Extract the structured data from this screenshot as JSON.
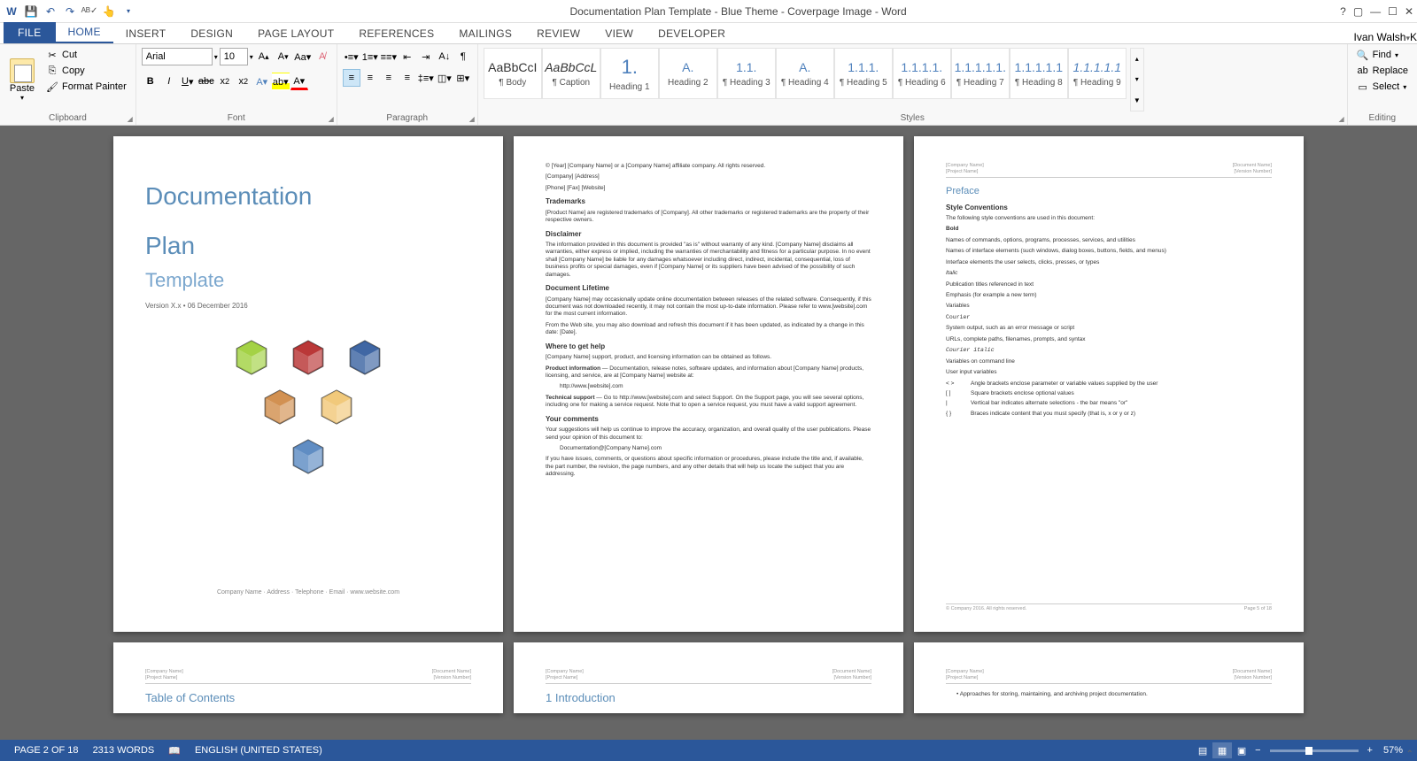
{
  "app": {
    "title": "Documentation Plan Template - Blue Theme - Coverpage Image - Word",
    "user": "Ivan Walsh",
    "user_initial": "K"
  },
  "qat": {
    "save": "💾",
    "undo": "↶",
    "redo": "↷",
    "spell": "✓",
    "touch": "⎘"
  },
  "tabs": {
    "file": "FILE",
    "home": "HOME",
    "insert": "INSERT",
    "design": "DESIGN",
    "page_layout": "PAGE LAYOUT",
    "references": "REFERENCES",
    "mailings": "MAILINGS",
    "review": "REVIEW",
    "view": "VIEW",
    "developer": "DEVELOPER"
  },
  "ribbon": {
    "clipboard": {
      "label": "Clipboard",
      "paste": "Paste",
      "cut": "Cut",
      "copy": "Copy",
      "format_painter": "Format Painter"
    },
    "font": {
      "label": "Font",
      "name": "Arial",
      "size": "10"
    },
    "paragraph": {
      "label": "Paragraph"
    },
    "styles": {
      "label": "Styles",
      "items": [
        {
          "preview": "AaBbCcI",
          "label": "¶ Body",
          "blue": false
        },
        {
          "preview": "AaBbCcL",
          "label": "¶ Caption",
          "blue": false,
          "italic": true
        },
        {
          "preview": "1.",
          "label": "Heading 1",
          "blue": true,
          "big": true
        },
        {
          "preview": "A.",
          "label": "Heading 2",
          "blue": true
        },
        {
          "preview": "1.1.",
          "label": "¶ Heading 3",
          "blue": true
        },
        {
          "preview": "A.",
          "label": "¶ Heading 4",
          "blue": true
        },
        {
          "preview": "1.1.1.",
          "label": "¶ Heading 5",
          "blue": true
        },
        {
          "preview": "1.1.1.1.",
          "label": "¶ Heading 6",
          "blue": true
        },
        {
          "preview": "1.1.1.1.1.",
          "label": "¶ Heading 7",
          "blue": true
        },
        {
          "preview": "1.1.1.1.1",
          "label": "¶ Heading 8",
          "blue": true
        },
        {
          "preview": "1.1.1.1.1",
          "label": "¶ Heading 9",
          "blue": true,
          "italic": true
        }
      ]
    },
    "editing": {
      "label": "Editing",
      "find": "Find",
      "replace": "Replace",
      "select": "Select"
    }
  },
  "document": {
    "cover": {
      "title1": "Documentation",
      "title2": "Plan",
      "subtitle": "Template",
      "version": "Version X.x • 06 December 2016",
      "company_line": "Company Name · Address · Telephone · Email · www.website.com",
      "cube_colors": [
        "#9acd32",
        "#b22222",
        "#2b579a",
        "#cd853f",
        "#f0c36d",
        "#4f81bd"
      ]
    },
    "header": {
      "company": "[Company Name]",
      "project": "[Project Name]",
      "doc": "[Document Name]",
      "ver": "[Version Number]"
    },
    "page2": {
      "copyright": "© [Year] [Company Name] or a [Company Name] affiliate company. All rights reserved.",
      "address": "[Company] [Address]",
      "contact": "[Phone] [Fax] [Website]",
      "trademarks_h": "Trademarks",
      "trademarks_p": "[Product Name] are registered trademarks of [Company]. All other trademarks or registered trademarks are the property of their respective owners.",
      "disclaimer_h": "Disclaimer",
      "disclaimer_p": "The information provided in this document is provided \"as is\" without warranty of any kind. [Company Name] disclaims all warranties, either express or implied, including the warranties of merchantability and fitness for a particular purpose. In no event shall [Company Name] be liable for any damages whatsoever including direct, indirect, incidental, consequential, loss of business profits or special damages, even if [Company Name] or its suppliers have been advised of the possibility of such damages.",
      "lifetime_h": "Document Lifetime",
      "lifetime_p1": "[Company Name] may occasionally update online documentation between releases of the related software. Consequently, if this document was not downloaded recently, it may not contain the most up-to-date information. Please refer to www.[website].com for the most current information.",
      "lifetime_p2": "From the Web site, you may also download and refresh this document if it has been updated, as indicated by a change in this date: [Date].",
      "help_h": "Where to get help",
      "help_p": "[Company Name] support, product, and licensing information can be obtained as follows.",
      "prodinfo_label": "Product information",
      "prodinfo_p": " — Documentation, release notes, software updates, and information about [Company Name] products, licensing, and service, are at [Company Name] website at:",
      "prodinfo_url": "http://www.[website].com",
      "tech_label": "Technical support",
      "tech_p": " — Go to http://www.[website].com and select Support. On the Support page, you will see several options, including one for making a service request. Note that to open a service request, you must have a valid support agreement.",
      "comments_h": "Your comments",
      "comments_p1": "Your suggestions will help us continue to improve the accuracy, organization, and overall quality of the user publications. Please send your opinion of this document to:",
      "comments_email": "Documentation@[Company Name].com",
      "comments_p2": "If you have issues, comments, or questions about specific information or procedures, please include the title and, if available, the part number, the revision, the page numbers, and any other details that will help us locate the subject that you are addressing."
    },
    "page3": {
      "preface": "Preface",
      "conventions_h": "Style Conventions",
      "conventions_p": "The following style conventions are used in this document:",
      "bold_h": "Bold",
      "bold_p1": "Names of commands, options, programs, processes, services, and utilities",
      "bold_p2": "Names of interface elements (such windows, dialog boxes, buttons, fields, and menus)",
      "bold_p3": "Interface elements the user selects, clicks, presses, or types",
      "italic_h": "Italic",
      "italic_p1": "Publication titles referenced in text",
      "italic_p2": "Emphasis (for example a new term)",
      "italic_p3": "Variables",
      "courier_h": "Courier",
      "courier_p1": "System output, such as an error message or script",
      "courier_p2": "URLs, complete paths, filenames, prompts, and syntax",
      "citalic_h": "Courier italic",
      "citalic_p1": "Variables on command line",
      "citalic_p2": "User input variables",
      "sym1": "< >",
      "sym1_p": "Angle brackets enclose parameter or variable values supplied by the user",
      "sym2": "[ ]",
      "sym2_p": "Square brackets enclose optional values",
      "sym3": "|",
      "sym3_p": "Vertical bar indicates alternate selections - the bar means \"or\"",
      "sym4": "{ }",
      "sym4_p": "Braces indicate content that you must specify (that is, x or y or z)",
      "footer_left": "© Company 2016. All rights reserved.",
      "footer_right": "Page 5 of 18"
    },
    "page4": {
      "toc": "Table of Contents"
    },
    "page5": {
      "intro": "1    Introduction"
    },
    "page6": {
      "bullet": "Approaches for storing, maintaining, and archiving project documentation."
    }
  },
  "status": {
    "page": "PAGE 2 OF 18",
    "words": "2313 WORDS",
    "lang": "ENGLISH (UNITED STATES)",
    "zoom": "57%"
  }
}
